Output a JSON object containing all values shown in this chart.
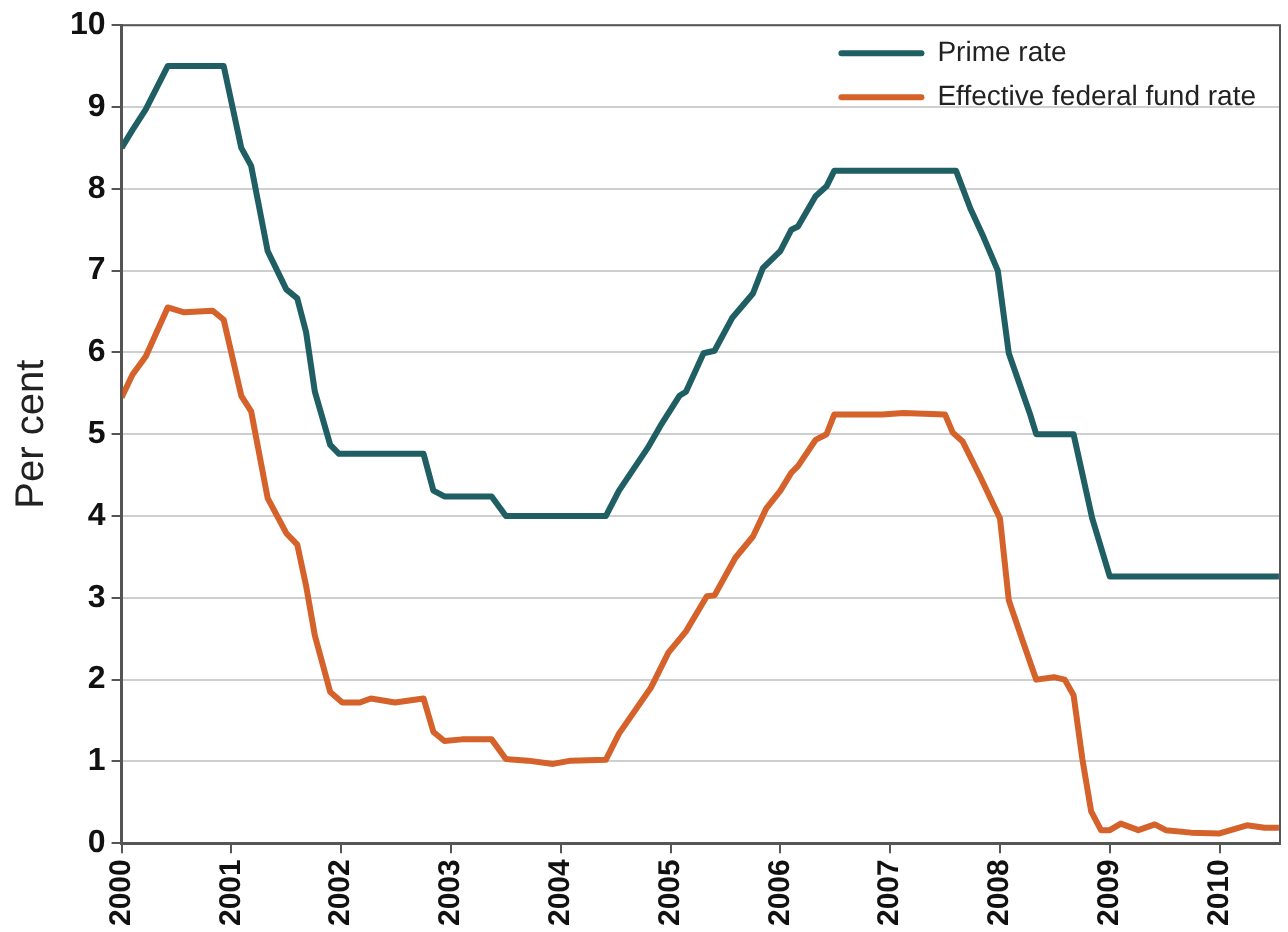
{
  "chart_data": {
    "type": "line",
    "ylabel": "Per cent",
    "xlim": [
      2000,
      2010.55
    ],
    "xticks": [
      2000,
      2001,
      2002,
      2003,
      2004,
      2005,
      2006,
      2007,
      2008,
      2009,
      2010
    ],
    "ylim": [
      0,
      10
    ],
    "yticks": [
      0,
      1,
      2,
      3,
      4,
      5,
      6,
      7,
      8,
      9,
      10
    ],
    "grid": "y",
    "legend": "top right",
    "marker": "none",
    "line_style": "solid",
    "series": [
      {
        "name": "Prime rate",
        "color": "#1f5f63",
        "x": [
          2000,
          2000.1,
          2000.22,
          2000.42,
          2000.93,
          2001.09,
          2001.18,
          2001.33,
          2001.5,
          2001.6,
          2001.68,
          2001.76,
          2001.9,
          2001.98,
          2002.75,
          2002.84,
          2002.94,
          2003.37,
          2003.5,
          2004.41,
          2004.53,
          2004.79,
          2004.92,
          2005.08,
          2005.14,
          2005.3,
          2005.4,
          2005.56,
          2005.75,
          2005.84,
          2006,
          2006.1,
          2006.16,
          2006.32,
          2006.42,
          2006.49,
          2007.6,
          2007.73,
          2007.85,
          2007.98,
          2008.08,
          2008.27,
          2008.33,
          2008.67,
          2008.84,
          2009,
          2010.54
        ],
        "values": [
          8.5,
          8.72,
          8.97,
          9.5,
          9.5,
          8.5,
          8.28,
          7.24,
          6.77,
          6.66,
          6.25,
          5.52,
          4.87,
          4.76,
          4.76,
          4.31,
          4.24,
          4.24,
          4,
          4,
          4.31,
          4.83,
          5.13,
          5.47,
          5.52,
          5.99,
          6.02,
          6.42,
          6.72,
          7.03,
          7.24,
          7.5,
          7.54,
          7.91,
          8.03,
          8.22,
          8.22,
          7.76,
          7.41,
          7,
          5.99,
          5.26,
          5,
          5,
          3.97,
          3.26,
          3.26
        ]
      },
      {
        "name": "Effective federal fund rate",
        "color": "#d4622a",
        "x": [
          2000,
          2000.1,
          2000.22,
          2000.42,
          2000.57,
          2000.83,
          2000.93,
          2001.09,
          2001.18,
          2001.33,
          2001.5,
          2001.6,
          2001.68,
          2001.76,
          2001.9,
          2002.01,
          2002.17,
          2002.27,
          2002.49,
          2002.75,
          2002.84,
          2002.94,
          2003.1,
          2003.37,
          2003.5,
          2003.7,
          2003.93,
          2004.09,
          2004.41,
          2004.53,
          2004.82,
          2004.98,
          2005.14,
          2005.33,
          2005.4,
          2005.59,
          2005.75,
          2005.87,
          2006,
          2006.1,
          2006.16,
          2006.32,
          2006.42,
          2006.49,
          2006.93,
          2007.12,
          2007.5,
          2007.57,
          2007.66,
          2007.82,
          2008,
          2008.08,
          2008.21,
          2008.33,
          2008.49,
          2008.59,
          2008.67,
          2008.75,
          2008.83,
          2008.92,
          2009,
          2009.1,
          2009.26,
          2009.41,
          2009.51,
          2009.74,
          2010,
          2010.25,
          2010.41,
          2010.54
        ],
        "values": [
          5.45,
          5.73,
          5.95,
          6.55,
          6.49,
          6.51,
          6.4,
          5.47,
          5.28,
          4.22,
          3.79,
          3.65,
          3.15,
          2.54,
          1.85,
          1.72,
          1.72,
          1.77,
          1.72,
          1.77,
          1.36,
          1.25,
          1.27,
          1.27,
          1.03,
          1.01,
          0.97,
          1.01,
          1.02,
          1.34,
          1.9,
          2.33,
          2.59,
          3.02,
          3.03,
          3.49,
          3.75,
          4.09,
          4.31,
          4.53,
          4.61,
          4.93,
          5,
          5.24,
          5.24,
          5.26,
          5.24,
          5.02,
          4.91,
          4.48,
          3.97,
          2.97,
          2.46,
          2,
          2.03,
          2,
          1.81,
          1.03,
          0.39,
          0.16,
          0.16,
          0.24,
          0.16,
          0.23,
          0.16,
          0.13,
          0.12,
          0.22,
          0.19,
          0.19
        ]
      }
    ]
  }
}
